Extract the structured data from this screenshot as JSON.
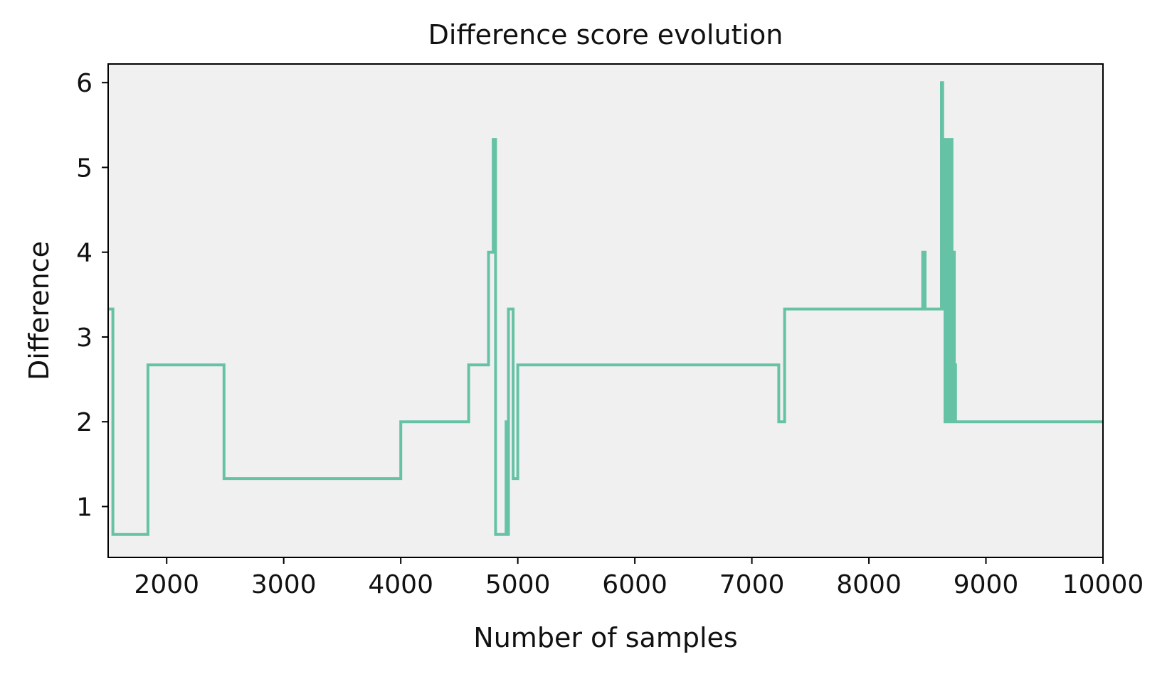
{
  "chart_data": {
    "type": "line",
    "title": "Difference score evolution",
    "xlabel": "Number of samples",
    "ylabel": "Difference",
    "xlim": [
      1500,
      10000
    ],
    "ylim": [
      0.4,
      6.22
    ],
    "xticks": [
      2000,
      3000,
      4000,
      5000,
      6000,
      7000,
      8000,
      9000,
      10000
    ],
    "yticks": [
      1,
      2,
      3,
      4,
      5,
      6
    ],
    "grid": false,
    "legend": "none",
    "colors": {
      "line": "#66c2a5",
      "plot_background": "#f0f0f0",
      "axes": "#000000"
    },
    "series": [
      {
        "step": "post",
        "x": [
          1500,
          1540,
          1840,
          2490,
          4000,
          4580,
          4750,
          4790,
          4810,
          4830,
          4900,
          4910,
          4920,
          4940,
          4960,
          4980,
          5000,
          7220,
          7230,
          7280,
          8460,
          8480,
          8620,
          8630,
          8640,
          8650,
          8655,
          8660,
          8670,
          8675,
          8680,
          8690,
          8700,
          8710,
          8720,
          8730,
          8740,
          10000
        ],
        "y": [
          3.33,
          0.67,
          2.67,
          1.33,
          2.0,
          2.67,
          4.0,
          5.33,
          0.67,
          0.67,
          2.0,
          0.67,
          3.33,
          3.33,
          1.33,
          1.33,
          2.67,
          2.67,
          2.0,
          3.33,
          4.0,
          3.33,
          6.0,
          3.33,
          5.33,
          2.0,
          5.33,
          2.0,
          5.33,
          2.0,
          5.33,
          2.0,
          5.33,
          2.0,
          4.0,
          2.67,
          2.0,
          2.0
        ]
      }
    ]
  }
}
